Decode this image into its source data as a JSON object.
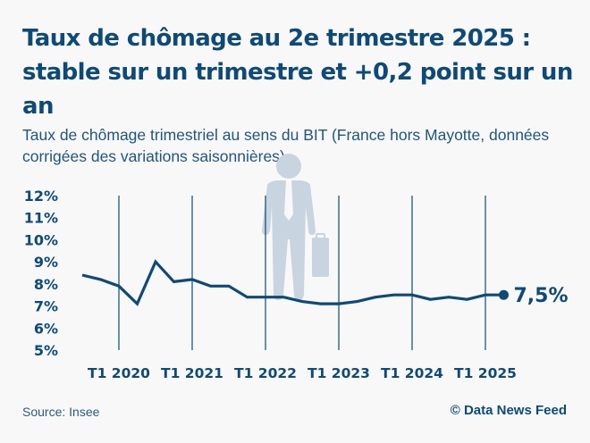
{
  "header": {
    "title": "Taux de chômage au 2e trimestre 2025 : stable sur un trimestre et +0,2 point sur un an",
    "subtitle": "Taux de chômage trimestriel au sens du BIT (France hors Mayotte, données corrigées des variations saisonnières)"
  },
  "footer": {
    "source": "Source: Insee",
    "credit": "© Data News Feed"
  },
  "colors": {
    "line": "#0d4a78",
    "gridline": "#0d4a78",
    "illustration": "#c8d4df",
    "background": "#f8f8f9"
  },
  "illustration": "businessman-with-briefcase-icon",
  "chart_data": {
    "type": "line",
    "title": "Taux de chômage au 2e trimestre 2025 : stable sur un trimestre et +0,2 point sur un an",
    "subtitle": "Taux de chômage trimestriel au sens du BIT (France hors Mayotte, données corrigées des variations saisonnières)",
    "xlabel": "",
    "ylabel": "",
    "ylim": [
      5,
      12
    ],
    "y_ticks": [
      12,
      11,
      10,
      9,
      8,
      7,
      6,
      5
    ],
    "y_tick_labels": [
      "12%",
      "11%",
      "10%",
      "9%",
      "8%",
      "7%",
      "6%",
      "5%"
    ],
    "x_tick_labels": [
      "T1 2020",
      "T1 2021",
      "T1 2022",
      "T1 2023",
      "T1 2024",
      "T1 2025"
    ],
    "x_tick_index": [
      2,
      6,
      10,
      14,
      18,
      22
    ],
    "grid": "vertical lines at x ticks",
    "legend": "none",
    "x": [
      "T3 2019",
      "T4 2019",
      "T1 2020",
      "T2 2020",
      "T3 2020",
      "T4 2020",
      "T1 2021",
      "T2 2021",
      "T3 2021",
      "T4 2021",
      "T1 2022",
      "T2 2022",
      "T3 2022",
      "T4 2022",
      "T1 2023",
      "T2 2023",
      "T3 2023",
      "T4 2023",
      "T1 2024",
      "T2 2024",
      "T3 2024",
      "T4 2024",
      "T1 2025",
      "T2 2025"
    ],
    "series": [
      {
        "name": "Taux de chômage",
        "values": [
          8.4,
          8.2,
          7.9,
          7.1,
          9.0,
          8.1,
          8.2,
          7.9,
          7.9,
          7.4,
          7.4,
          7.4,
          7.2,
          7.1,
          7.1,
          7.2,
          7.4,
          7.5,
          7.5,
          7.3,
          7.4,
          7.3,
          7.5,
          7.5
        ]
      }
    ],
    "annotations": [
      {
        "point": "T2 2025",
        "text": "7,5%"
      }
    ]
  }
}
